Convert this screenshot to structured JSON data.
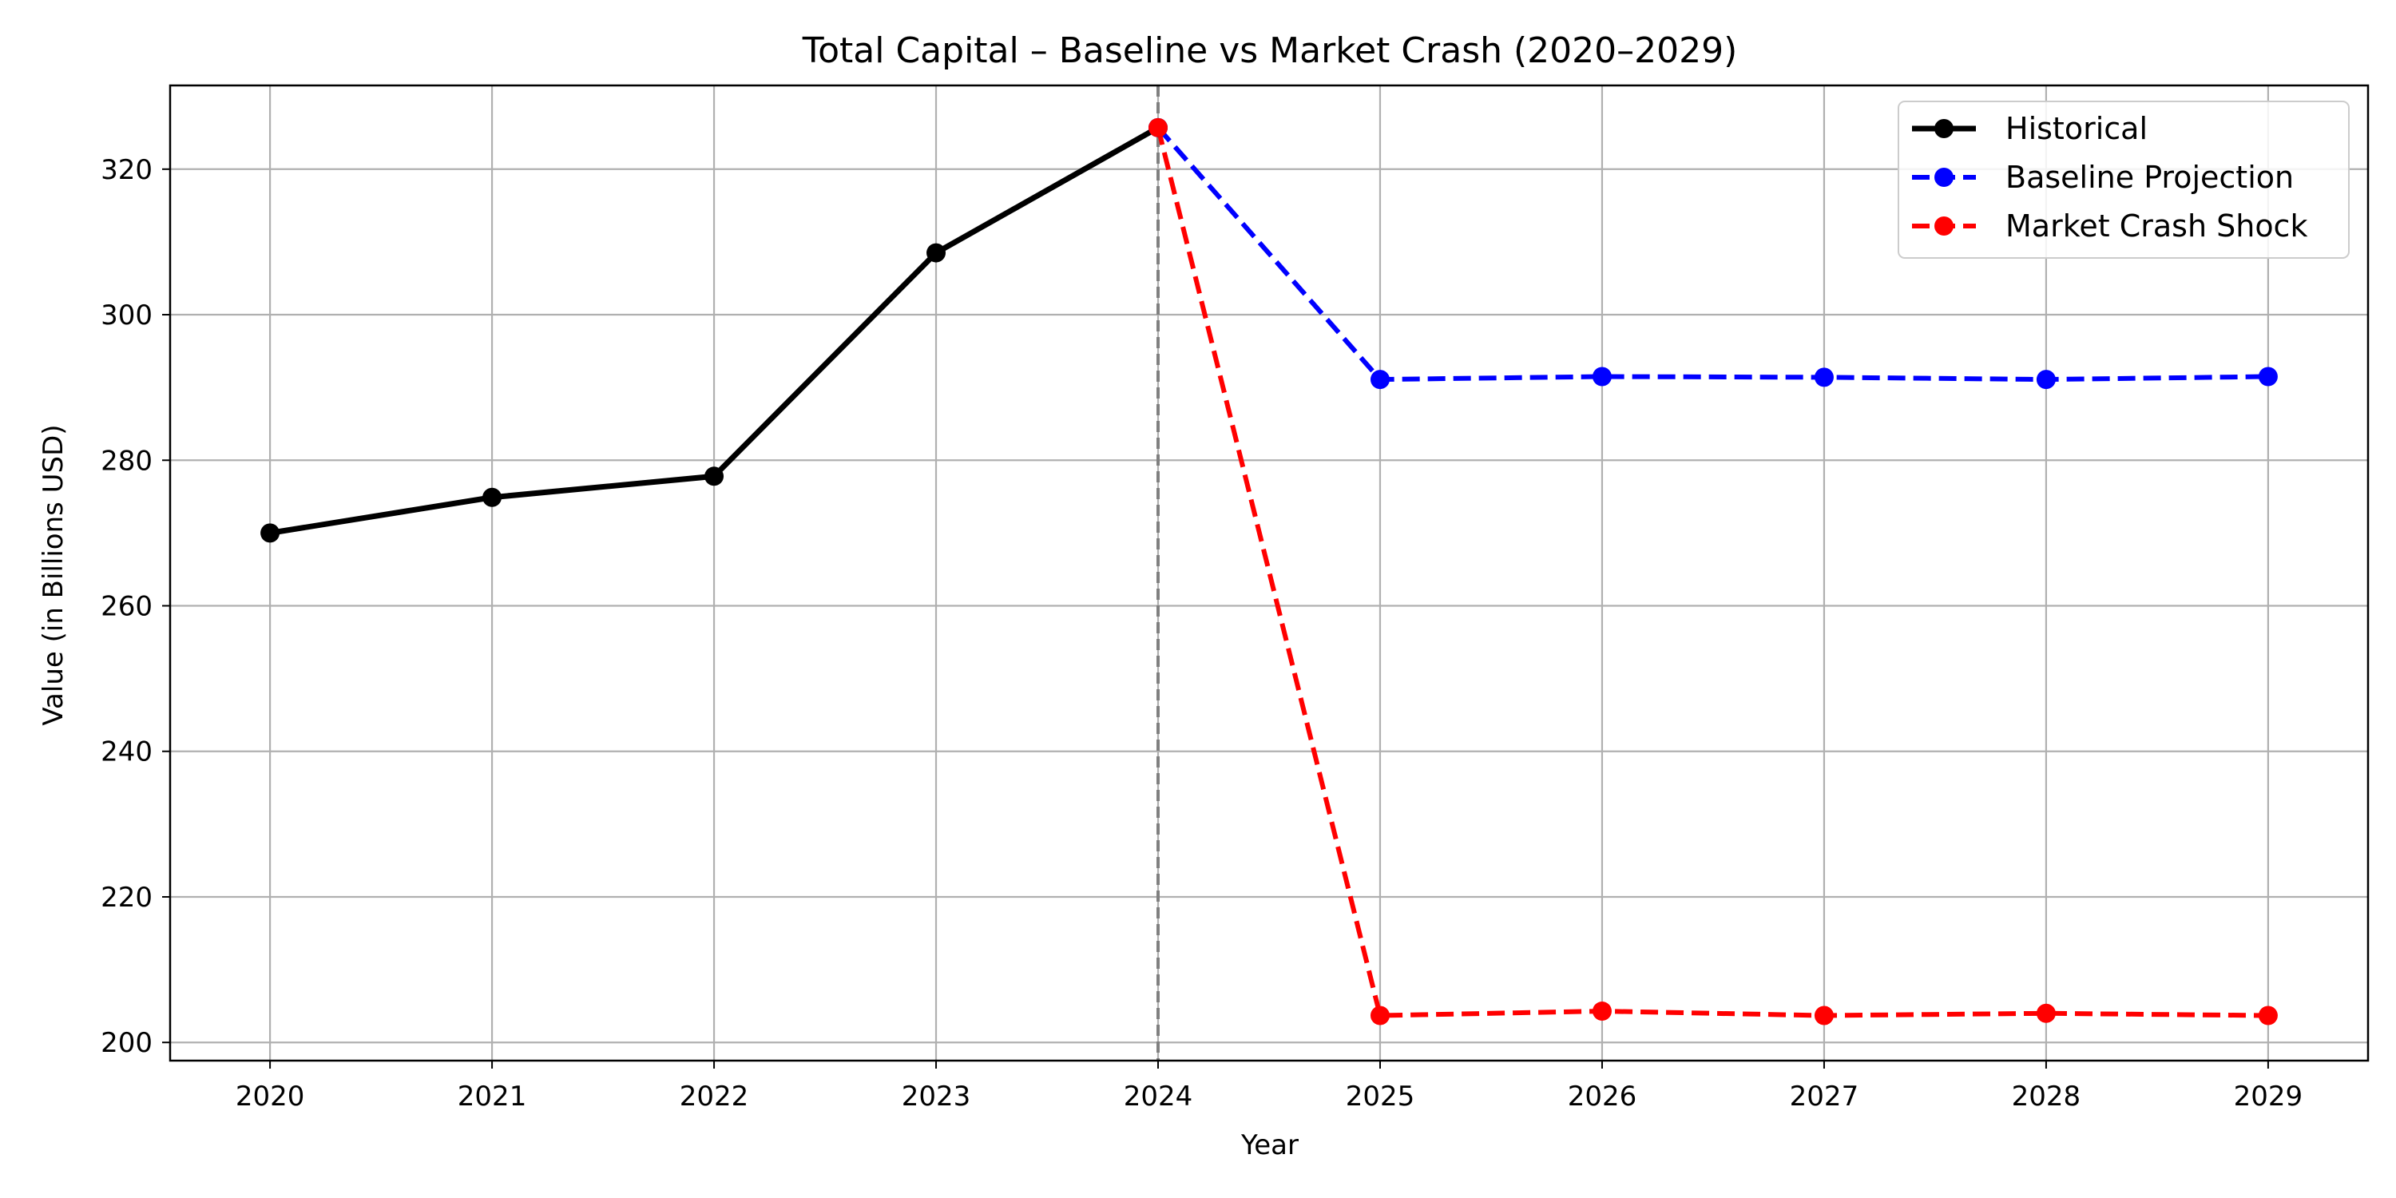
{
  "chart_data": {
    "type": "line",
    "title": "Total Capital – Baseline vs Market Crash (2020–2029)",
    "xlabel": "Year",
    "ylabel": "Value (in Billions USD)",
    "xlim": [
      2019.55,
      2029.45
    ],
    "ylim": [
      197.5,
      331.5
    ],
    "x_ticks": [
      2020,
      2021,
      2022,
      2023,
      2024,
      2025,
      2026,
      2027,
      2028,
      2029
    ],
    "y_ticks": [
      200,
      220,
      240,
      260,
      280,
      300,
      320
    ],
    "grid": true,
    "legend_position": "top-right",
    "vertical_reference_line": {
      "x": 2024,
      "style": "dashed",
      "color": "#808080"
    },
    "series": [
      {
        "name": "Historical",
        "color": "#000000",
        "style": "solid",
        "x": [
          2020,
          2021,
          2022,
          2023,
          2024
        ],
        "values": [
          270.0,
          274.9,
          277.8,
          308.5,
          325.7
        ]
      },
      {
        "name": "Baseline Projection",
        "color": "#0000ff",
        "style": "dashed",
        "x": [
          2024,
          2025,
          2026,
          2027,
          2028,
          2029
        ],
        "values": [
          325.7,
          291.1,
          291.5,
          291.4,
          291.1,
          291.5
        ]
      },
      {
        "name": "Market Crash Shock",
        "color": "#ff0000",
        "style": "dashed",
        "x": [
          2024,
          2025,
          2026,
          2027,
          2028,
          2029
        ],
        "values": [
          325.7,
          203.7,
          204.3,
          203.7,
          204.0,
          203.7
        ]
      }
    ]
  }
}
